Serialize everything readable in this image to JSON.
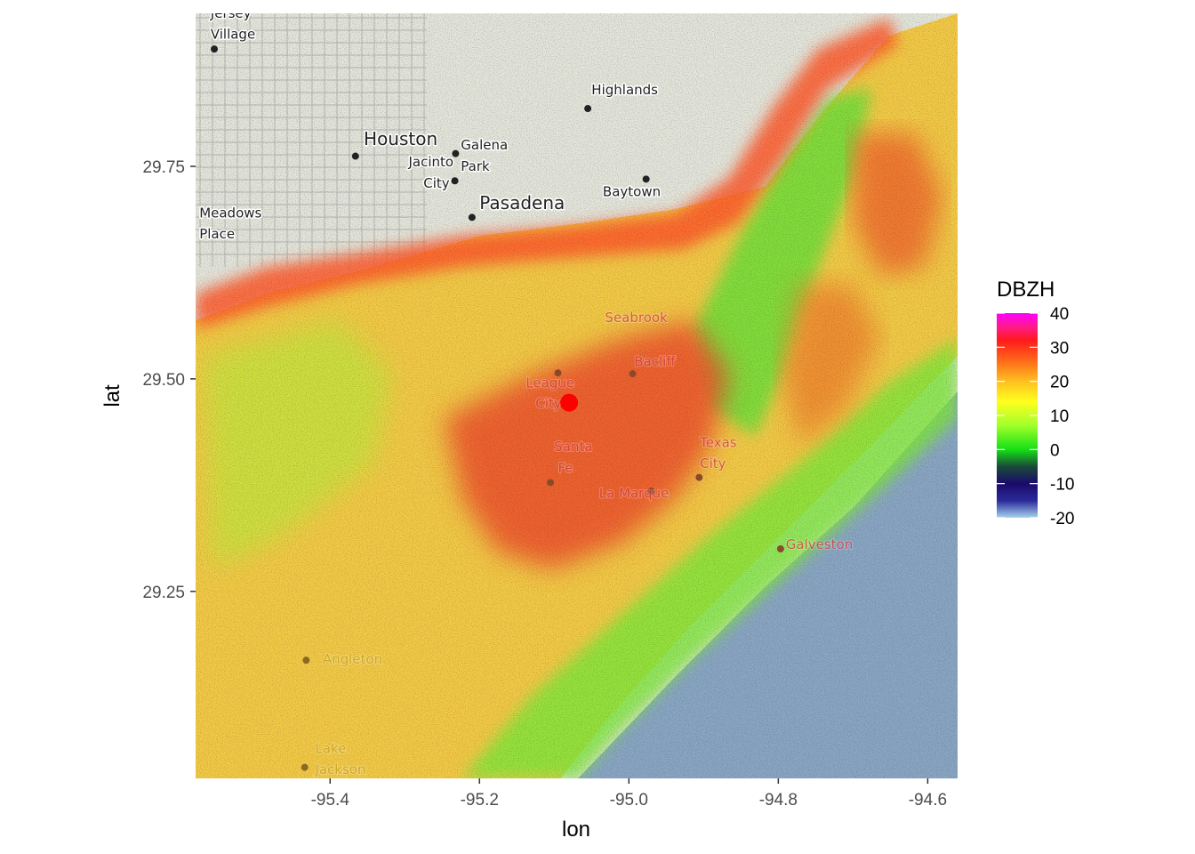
{
  "title": "",
  "axes": {
    "xlabel": "lon",
    "ylabel": "lat",
    "xticks": [
      {
        "value": -95.4,
        "label": "-95.4"
      },
      {
        "value": -95.2,
        "label": "-95.2"
      },
      {
        "value": -95.0,
        "label": "-95.0"
      },
      {
        "value": -94.8,
        "label": "-94.8"
      },
      {
        "value": -94.6,
        "label": "-94.6"
      }
    ],
    "yticks": [
      {
        "value": 29.25,
        "label": "29.25"
      },
      {
        "value": 29.5,
        "label": "29.50"
      },
      {
        "value": 29.75,
        "label": "29.75"
      }
    ],
    "xlim": [
      -95.58,
      -94.56
    ],
    "ylim": [
      29.03,
      29.93
    ]
  },
  "legend": {
    "title": "DBZH",
    "placement": "right",
    "range": [
      -20,
      40
    ],
    "stops": [
      {
        "value": -20,
        "color": "#a6d4ee"
      },
      {
        "value": -15,
        "color": "#2a2a9a"
      },
      {
        "value": -10,
        "color": "#1a0a6a"
      },
      {
        "value": -5,
        "color": "#1a4a3a"
      },
      {
        "value": 0,
        "color": "#14e014"
      },
      {
        "value": 7,
        "color": "#a0ff2a"
      },
      {
        "value": 14,
        "color": "#ffff1e"
      },
      {
        "value": 20,
        "color": "#ffc020"
      },
      {
        "value": 26,
        "color": "#ff6a1a"
      },
      {
        "value": 32,
        "color": "#ff1a1a"
      },
      {
        "value": 36,
        "color": "#ff1a8a"
      },
      {
        "value": 40,
        "color": "#ff00ff"
      }
    ],
    "ticks": [
      {
        "value": 40,
        "label": "40"
      },
      {
        "value": 30,
        "label": "30"
      },
      {
        "value": 20,
        "label": "20"
      },
      {
        "value": 10,
        "label": "10"
      },
      {
        "value": 0,
        "label": "0"
      },
      {
        "value": -10,
        "label": "-10"
      },
      {
        "value": -20,
        "label": "-20"
      }
    ]
  },
  "radar_site": {
    "lon": -95.08,
    "lat": 29.472,
    "color": "#ff0000"
  },
  "map": {
    "land_color": "#e4e6dc",
    "water_color": "#8aa6c4",
    "places": [
      {
        "name": "Jersey",
        "lon": -95.56,
        "lat": 29.925,
        "dot": false
      },
      {
        "name": "Village",
        "lon": -95.56,
        "lat": 29.9,
        "dot": true,
        "dot_lon": -95.555,
        "dot_lat": 29.888
      },
      {
        "name": "Highlands",
        "lon": -95.05,
        "lat": 29.835,
        "dot": true,
        "dot_lon": -95.055,
        "dot_lat": 29.818
      },
      {
        "name": "Houston",
        "lon": -95.355,
        "lat": 29.775,
        "dot": true,
        "dot_lon": -95.366,
        "dot_lat": 29.762,
        "big": true
      },
      {
        "name": "Galena",
        "lon": -95.225,
        "lat": 29.77,
        "dot": true,
        "dot_lon": -95.232,
        "dot_lat": 29.765
      },
      {
        "name": "Park",
        "lon": -95.225,
        "lat": 29.745,
        "dot": false
      },
      {
        "name": "Jacinto",
        "lon": -95.295,
        "lat": 29.75,
        "dot": false
      },
      {
        "name": "City",
        "lon": -95.275,
        "lat": 29.725,
        "dot": true,
        "dot_lon": -95.233,
        "dot_lat": 29.733
      },
      {
        "name": "Pasadena",
        "lon": -95.2,
        "lat": 29.7,
        "dot": true,
        "dot_lon": -95.21,
        "dot_lat": 29.69,
        "big": true
      },
      {
        "name": "Baytown",
        "lon": -95.035,
        "lat": 29.715,
        "dot": true,
        "dot_lon": -94.977,
        "dot_lat": 29.735
      },
      {
        "name": "Meadows",
        "lon": -95.575,
        "lat": 29.69,
        "dot": false
      },
      {
        "name": "Place",
        "lon": -95.575,
        "lat": 29.665,
        "dot": true,
        "dot_lon": -95.585,
        "dot_lat": 29.65
      },
      {
        "name": "Seabrook",
        "lon": -95.032,
        "lat": 29.567,
        "faded": "r",
        "dot": false
      },
      {
        "name": "Bacliff",
        "lon": -94.993,
        "lat": 29.515,
        "faded": "r",
        "dot": true,
        "dot_lon": -94.995,
        "dot_lat": 29.506
      },
      {
        "name": "League",
        "lon": -95.138,
        "lat": 29.49,
        "faded": "d",
        "dot": true,
        "dot_lon": -95.095,
        "dot_lat": 29.507
      },
      {
        "name": "City",
        "lon": -95.125,
        "lat": 29.466,
        "faded": "d",
        "dot": false
      },
      {
        "name": "Texas",
        "lon": -94.905,
        "lat": 29.42,
        "faded": "r",
        "dot": false
      },
      {
        "name": "City",
        "lon": -94.905,
        "lat": 29.395,
        "faded": "r",
        "dot": true,
        "dot_lon": -94.906,
        "dot_lat": 29.384
      },
      {
        "name": "Santa",
        "lon": -95.1,
        "lat": 29.415,
        "faded": "r",
        "dot": false
      },
      {
        "name": "Fe",
        "lon": -95.095,
        "lat": 29.39,
        "faded": "r",
        "dot": true,
        "dot_lon": -95.105,
        "dot_lat": 29.378
      },
      {
        "name": "La Marque",
        "lon": -95.04,
        "lat": 29.36,
        "faded": "r",
        "dot": true,
        "dot_lon": -94.97,
        "dot_lat": 29.368
      },
      {
        "name": "Galveston",
        "lon": -94.79,
        "lat": 29.3,
        "faded": "r",
        "dot": true,
        "dot_lon": -94.797,
        "dot_lat": 29.3
      },
      {
        "name": "Angleton",
        "lon": -95.41,
        "lat": 29.165,
        "faded": "y",
        "dot": true,
        "dot_lon": -95.432,
        "dot_lat": 29.169
      },
      {
        "name": "Lake",
        "lon": -95.42,
        "lat": 29.06,
        "faded": "y",
        "dot": false
      },
      {
        "name": "Jackson",
        "lon": -95.42,
        "lat": 29.035,
        "faded": "y",
        "dot": true,
        "dot_lon": -95.434,
        "dot_lat": 29.043
      }
    ]
  }
}
